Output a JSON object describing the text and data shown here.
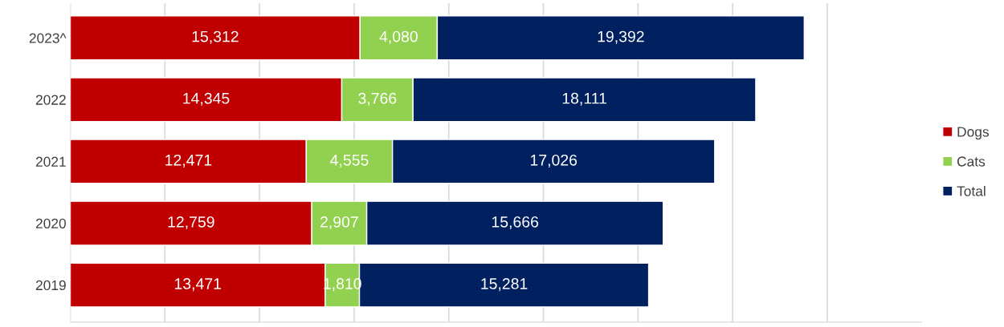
{
  "chart_data": {
    "type": "bar",
    "orientation": "horizontal",
    "stacked": true,
    "categories": [
      "2023^",
      "2022",
      "2021",
      "2020",
      "2019"
    ],
    "series": [
      {
        "name": "Dogs",
        "color": "#c00000",
        "values": [
          15312,
          14345,
          12471,
          12759,
          13471
        ],
        "value_labels": [
          "15,312",
          "14,345",
          "12,471",
          "12,759",
          "13,471"
        ]
      },
      {
        "name": "Cats",
        "color": "#92d050",
        "values": [
          4080,
          3766,
          4555,
          2907,
          1810
        ],
        "value_labels": [
          "4,080",
          "3,766",
          "4,555",
          "2,907",
          "1,810"
        ]
      },
      {
        "name": "Total",
        "color": "#002060",
        "values": [
          19392,
          18111,
          17026,
          15666,
          15281
        ],
        "value_labels": [
          "19,392",
          "18,111",
          "17,026",
          "15,666",
          "15,281"
        ]
      }
    ],
    "tick_labels": "y",
    "grid": "x",
    "legend": "right"
  }
}
